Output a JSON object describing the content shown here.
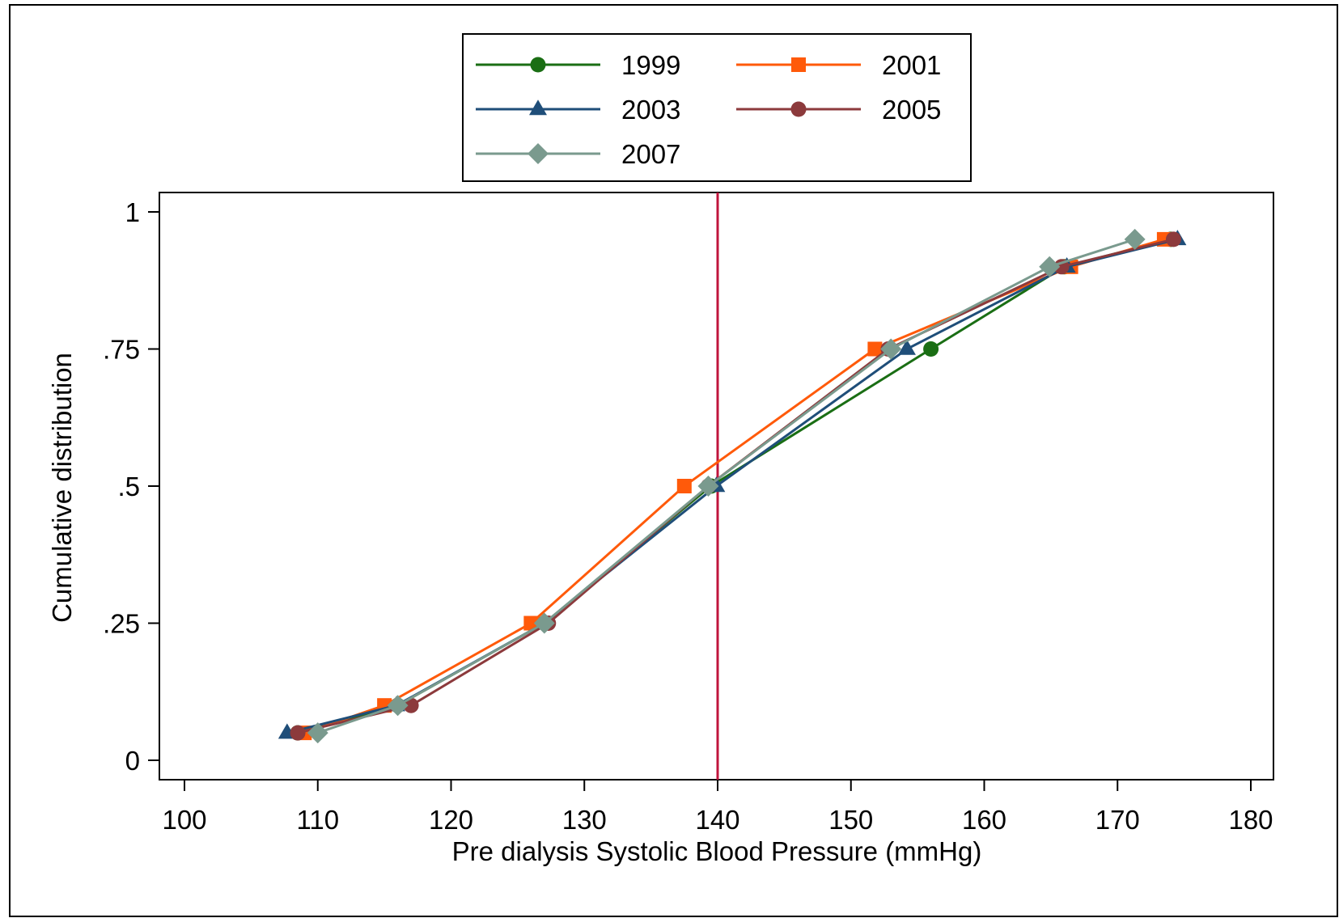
{
  "chart_data": {
    "type": "line",
    "title": "",
    "xlabel": "Pre dialysis Systolic Blood Pressure (mmHg)",
    "ylabel": "Cumulative distribution",
    "xlim": [
      100,
      180
    ],
    "ylim": [
      0,
      1
    ],
    "x_ticks": [
      100,
      110,
      120,
      130,
      140,
      150,
      160,
      170,
      180
    ],
    "x_tick_labels": [
      "100",
      "110",
      "120",
      "130",
      "140",
      "150",
      "160",
      "170",
      "180"
    ],
    "y_ticks": [
      0,
      0.25,
      0.5,
      0.75,
      1
    ],
    "y_tick_labels": [
      "0",
      ".25",
      ".5",
      ".75",
      "1"
    ],
    "grid": false,
    "legend_position": "top",
    "reference_line": {
      "axis": "x",
      "value": 140,
      "color": "#c0143c"
    },
    "series": [
      {
        "name": "1999",
        "marker": "circle",
        "color": "#1a6e14",
        "points": [
          [
            108.5,
            0.05
          ],
          [
            116,
            0.1
          ],
          [
            127,
            0.25
          ],
          [
            139.5,
            0.5
          ],
          [
            156,
            0.75
          ],
          [
            166,
            0.9
          ],
          [
            174,
            0.95
          ]
        ]
      },
      {
        "name": "2001",
        "marker": "square",
        "color": "#ff5a0a",
        "points": [
          [
            109,
            0.05
          ],
          [
            115,
            0.1
          ],
          [
            126,
            0.25
          ],
          [
            137.5,
            0.5
          ],
          [
            151.8,
            0.75
          ],
          [
            166.5,
            0.9
          ],
          [
            173.5,
            0.95
          ]
        ]
      },
      {
        "name": "2003",
        "marker": "triangle",
        "color": "#1f4e79",
        "points": [
          [
            107.7,
            0.05
          ],
          [
            115.9,
            0.1
          ],
          [
            127,
            0.25
          ],
          [
            139.9,
            0.5
          ],
          [
            154.2,
            0.75
          ],
          [
            166.2,
            0.9
          ],
          [
            174.5,
            0.95
          ]
        ]
      },
      {
        "name": "2005",
        "marker": "circle",
        "color": "#8c3a3c",
        "points": [
          [
            108.5,
            0.05
          ],
          [
            117,
            0.1
          ],
          [
            127.3,
            0.25
          ],
          [
            139.3,
            0.5
          ],
          [
            152.8,
            0.75
          ],
          [
            165.8,
            0.9
          ],
          [
            174.2,
            0.95
          ]
        ]
      },
      {
        "name": "2007",
        "marker": "diamond",
        "color": "#7a9a8e",
        "points": [
          [
            110,
            0.05
          ],
          [
            116,
            0.1
          ],
          [
            127,
            0.25
          ],
          [
            139.3,
            0.5
          ],
          [
            153,
            0.75
          ],
          [
            164.9,
            0.9
          ],
          [
            171.3,
            0.95
          ]
        ]
      }
    ]
  }
}
